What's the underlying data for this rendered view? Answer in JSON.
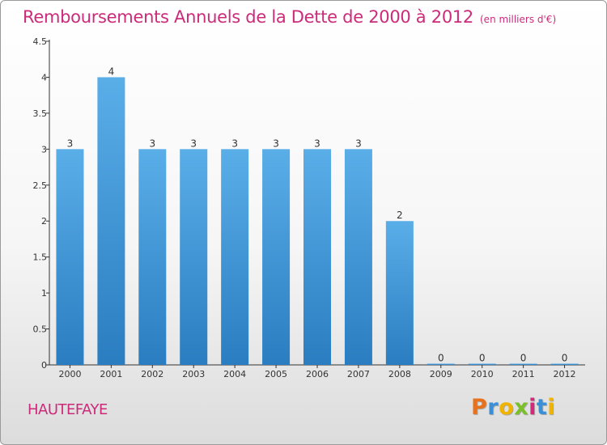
{
  "chart_data": {
    "type": "bar",
    "title": "Remboursements Annuels de la Dette de 2000 à 2012",
    "subtitle": "(en milliers d'€)",
    "categories": [
      "2000",
      "2001",
      "2002",
      "2003",
      "2004",
      "2005",
      "2006",
      "2007",
      "2008",
      "2009",
      "2010",
      "2011",
      "2012"
    ],
    "values": [
      3,
      4,
      3,
      3,
      3,
      3,
      3,
      3,
      2,
      0,
      0,
      0,
      0
    ],
    "data_labels": [
      "3",
      "4",
      "3",
      "3",
      "3",
      "3",
      "3",
      "3",
      "2",
      "0",
      "0",
      "0",
      "0"
    ],
    "y_ticks": [
      "0",
      "0.5",
      "1",
      "1.5",
      "2",
      "2.5",
      "3",
      "3.5",
      "4",
      "4.5"
    ],
    "ylim": [
      0,
      4.5
    ],
    "xlabel": "",
    "ylabel": "",
    "grid": false,
    "bar_color_top": "#5aaee8",
    "bar_color_bottom": "#2a7dc0"
  },
  "footer": {
    "commune": "HAUTEFAYE",
    "logo_letters": [
      "P",
      "r",
      "o",
      "x",
      "i",
      "t",
      "i"
    ],
    "logo_colors": [
      "#e8721c",
      "#3a8fd6",
      "#f0b400",
      "#7bbf2a",
      "#d6287a",
      "#3a8fd6",
      "#f0b400"
    ]
  },
  "colors": {
    "title": "#cc2b7a",
    "axis": "#333333"
  }
}
